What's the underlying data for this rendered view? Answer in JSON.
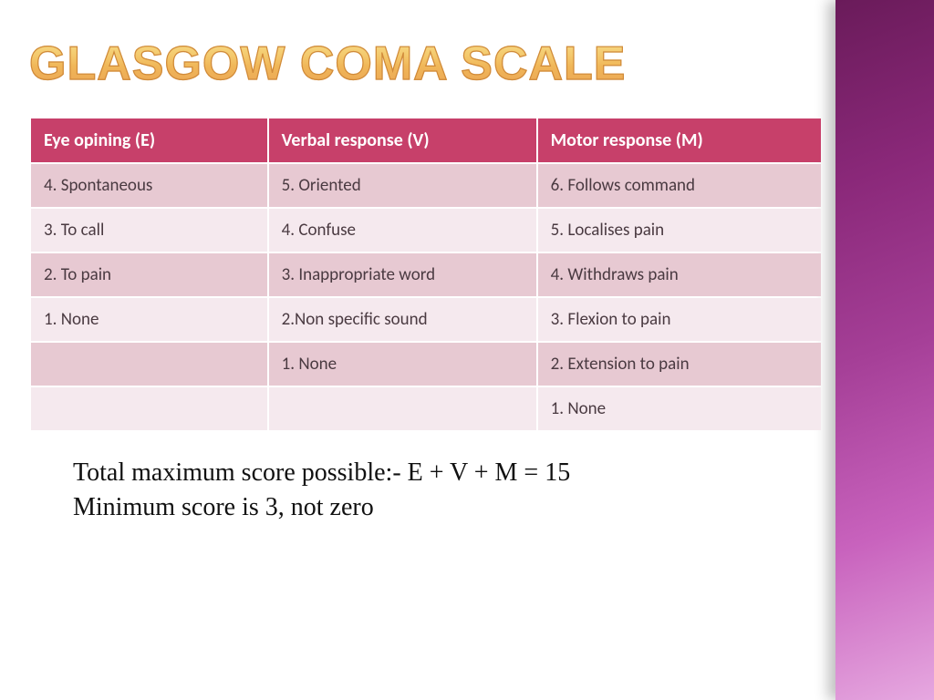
{
  "title": "GLASGOW COMA SCALE",
  "table": {
    "header_bg": "#c7406a",
    "header_fg": "#ffffff",
    "row_alt_a_bg": "#e7c9d2",
    "row_alt_b_bg": "#f5e9ee",
    "cell_fg": "#4a3a41",
    "col_widths": [
      "30%",
      "34%",
      "36%"
    ],
    "columns": [
      "Eye opining (E)",
      "Verbal response (V)",
      " Motor response (M)"
    ],
    "rows": [
      [
        "4. Spontaneous",
        "5. Oriented",
        "6. Follows command"
      ],
      [
        "3. To call",
        "4. Confuse",
        "5. Localises pain"
      ],
      [
        "2. To pain",
        "3. Inappropriate word",
        "4. Withdraws pain"
      ],
      [
        "1. None",
        "2.Non specific sound",
        "3. Flexion to pain"
      ],
      [
        "",
        "1. None",
        "2. Extension to pain"
      ],
      [
        "",
        "",
        "1. None"
      ]
    ]
  },
  "notes": {
    "line1": "Total maximum score possible:- E + V + M = 15",
    "line2": "Minimum score is 3, not zero"
  },
  "accent": {
    "gradient_start": "#6a1b5a",
    "gradient_end": "#e6a8e0"
  }
}
